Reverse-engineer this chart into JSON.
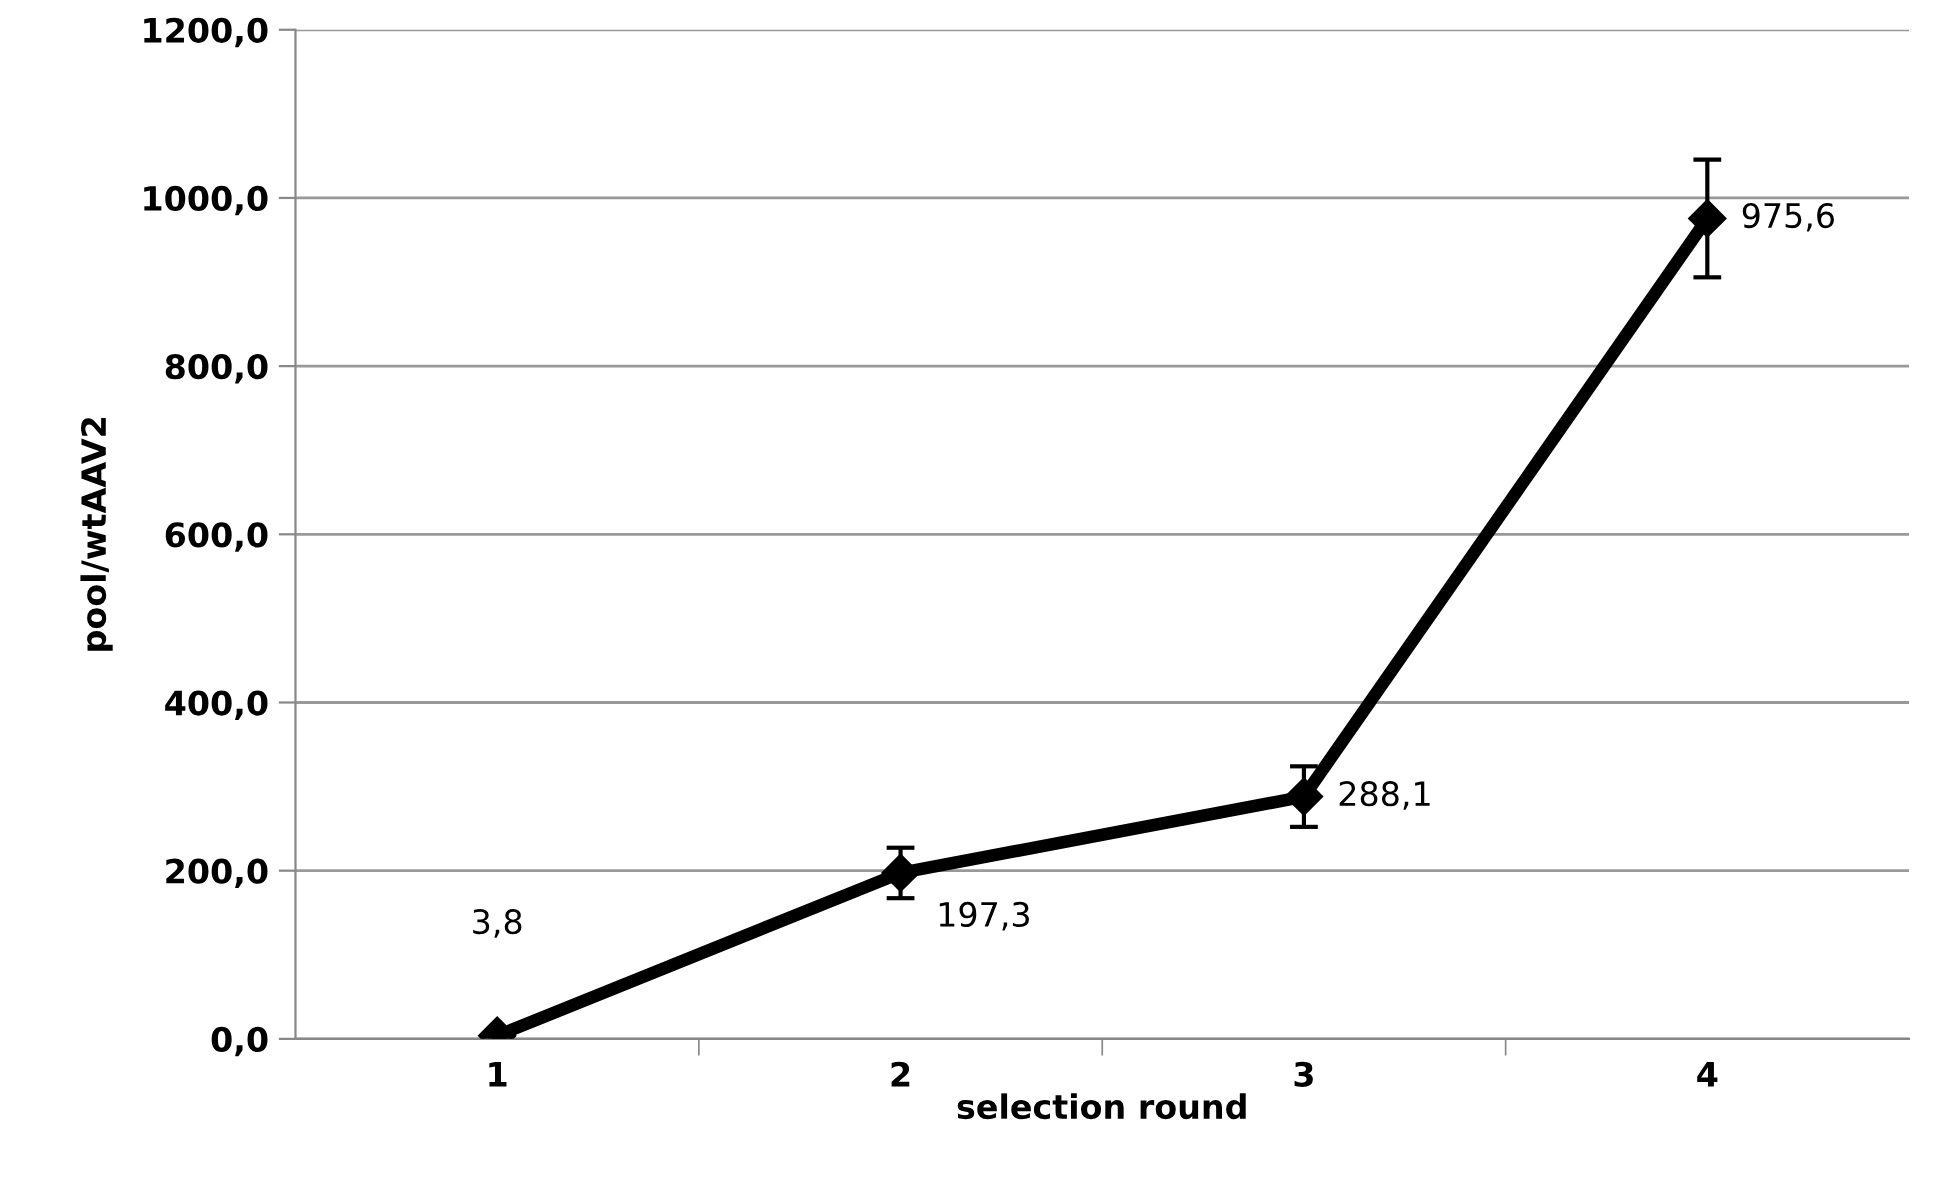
{
  "chart_data": {
    "type": "line",
    "xlabel": "selection round",
    "ylabel": "pool/wtAAV2",
    "categories": [
      "1",
      "2",
      "3",
      "4"
    ],
    "series": [
      {
        "color": "#000000",
        "values": [
          3.8,
          197.3,
          288.1,
          975.6
        ],
        "errors": [
          null,
          30,
          36,
          70
        ],
        "value_labels": [
          "3,8",
          "197,3",
          "288,1",
          "975,6"
        ]
      }
    ],
    "ylim": [
      0,
      1200
    ],
    "yticks": [
      {
        "value": 0,
        "label": "0,0"
      },
      {
        "value": 200,
        "label": "200,0"
      },
      {
        "value": 400,
        "label": "400,0"
      },
      {
        "value": 600,
        "label": "600,0"
      },
      {
        "value": 800,
        "label": "800,0"
      },
      {
        "value": 1000,
        "label": "1000,0"
      },
      {
        "value": 1200,
        "label": "1200,0"
      }
    ],
    "grid": "y",
    "legend": false,
    "marker": "diamond",
    "line_style": "solid"
  }
}
